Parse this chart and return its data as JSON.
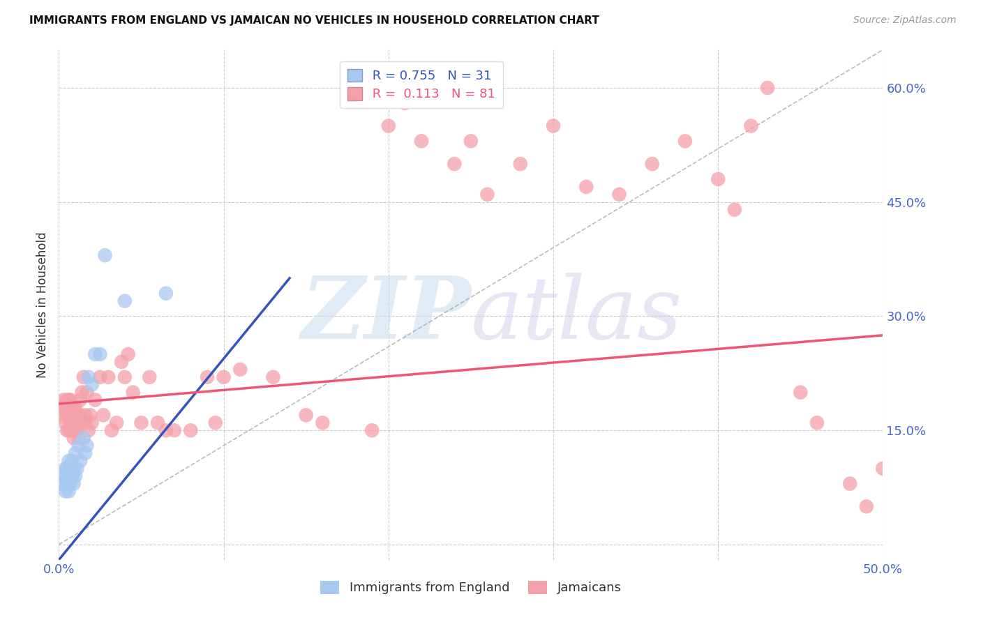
{
  "title": "IMMIGRANTS FROM ENGLAND VS JAMAICAN NO VEHICLES IN HOUSEHOLD CORRELATION CHART",
  "source": "Source: ZipAtlas.com",
  "ylabel": "No Vehicles in Household",
  "xlim": [
    0.0,
    0.5
  ],
  "ylim": [
    -0.02,
    0.65
  ],
  "grid_color": "#cccccc",
  "background_color": "#ffffff",
  "watermark_zip": "ZIP",
  "watermark_atlas": "atlas",
  "legend_r1": "R = 0.755",
  "legend_n1": "N = 31",
  "legend_r2": "R =  0.113",
  "legend_n2": "N = 81",
  "england_color": "#A8C8F0",
  "jamaican_color": "#F4A0A8",
  "england_line_color": "#3355BB",
  "jamaican_line_color": "#EE5577",
  "diagonal_color": "#aaaaaa",
  "axis_tick_color": "#4466CC",
  "england_x": [
    0.002,
    0.003,
    0.004,
    0.004,
    0.005,
    0.005,
    0.005,
    0.006,
    0.006,
    0.006,
    0.007,
    0.007,
    0.008,
    0.008,
    0.009,
    0.009,
    0.01,
    0.01,
    0.011,
    0.012,
    0.013,
    0.015,
    0.016,
    0.017,
    0.018,
    0.02,
    0.022,
    0.025,
    0.028,
    0.04,
    0.065
  ],
  "england_y": [
    0.08,
    0.09,
    0.07,
    0.1,
    0.08,
    0.09,
    0.1,
    0.07,
    0.09,
    0.11,
    0.08,
    0.1,
    0.09,
    0.11,
    0.08,
    0.1,
    0.09,
    0.12,
    0.1,
    0.13,
    0.11,
    0.14,
    0.12,
    0.13,
    0.22,
    0.21,
    0.25,
    0.25,
    0.38,
    0.32,
    0.33
  ],
  "jamaican_x": [
    0.002,
    0.003,
    0.003,
    0.004,
    0.004,
    0.005,
    0.005,
    0.005,
    0.006,
    0.006,
    0.006,
    0.007,
    0.007,
    0.007,
    0.008,
    0.008,
    0.008,
    0.009,
    0.009,
    0.01,
    0.01,
    0.01,
    0.011,
    0.011,
    0.012,
    0.012,
    0.013,
    0.013,
    0.014,
    0.015,
    0.016,
    0.016,
    0.017,
    0.018,
    0.019,
    0.02,
    0.022,
    0.025,
    0.027,
    0.03,
    0.032,
    0.035,
    0.038,
    0.04,
    0.042,
    0.045,
    0.05,
    0.055,
    0.06,
    0.065,
    0.07,
    0.08,
    0.09,
    0.095,
    0.1,
    0.11,
    0.13,
    0.15,
    0.16,
    0.19,
    0.2,
    0.21,
    0.22,
    0.24,
    0.25,
    0.26,
    0.28,
    0.3,
    0.32,
    0.34,
    0.36,
    0.38,
    0.4,
    0.41,
    0.42,
    0.43,
    0.45,
    0.46,
    0.48,
    0.49,
    0.5
  ],
  "jamaican_y": [
    0.18,
    0.19,
    0.17,
    0.16,
    0.18,
    0.15,
    0.17,
    0.19,
    0.15,
    0.18,
    0.19,
    0.16,
    0.17,
    0.19,
    0.15,
    0.17,
    0.16,
    0.14,
    0.18,
    0.15,
    0.16,
    0.18,
    0.15,
    0.17,
    0.14,
    0.16,
    0.17,
    0.19,
    0.2,
    0.22,
    0.17,
    0.16,
    0.2,
    0.15,
    0.17,
    0.16,
    0.19,
    0.22,
    0.17,
    0.22,
    0.15,
    0.16,
    0.24,
    0.22,
    0.25,
    0.2,
    0.16,
    0.22,
    0.16,
    0.15,
    0.15,
    0.15,
    0.22,
    0.16,
    0.22,
    0.23,
    0.22,
    0.17,
    0.16,
    0.15,
    0.55,
    0.58,
    0.53,
    0.5,
    0.53,
    0.46,
    0.5,
    0.55,
    0.47,
    0.46,
    0.5,
    0.53,
    0.48,
    0.44,
    0.55,
    0.6,
    0.2,
    0.16,
    0.08,
    0.05,
    0.1
  ],
  "eng_line_x0": 0.0,
  "eng_line_y0": -0.02,
  "eng_line_x1": 0.14,
  "eng_line_y1": 0.35,
  "jam_line_x0": 0.0,
  "jam_line_y0": 0.185,
  "jam_line_x1": 0.5,
  "jam_line_y1": 0.275
}
